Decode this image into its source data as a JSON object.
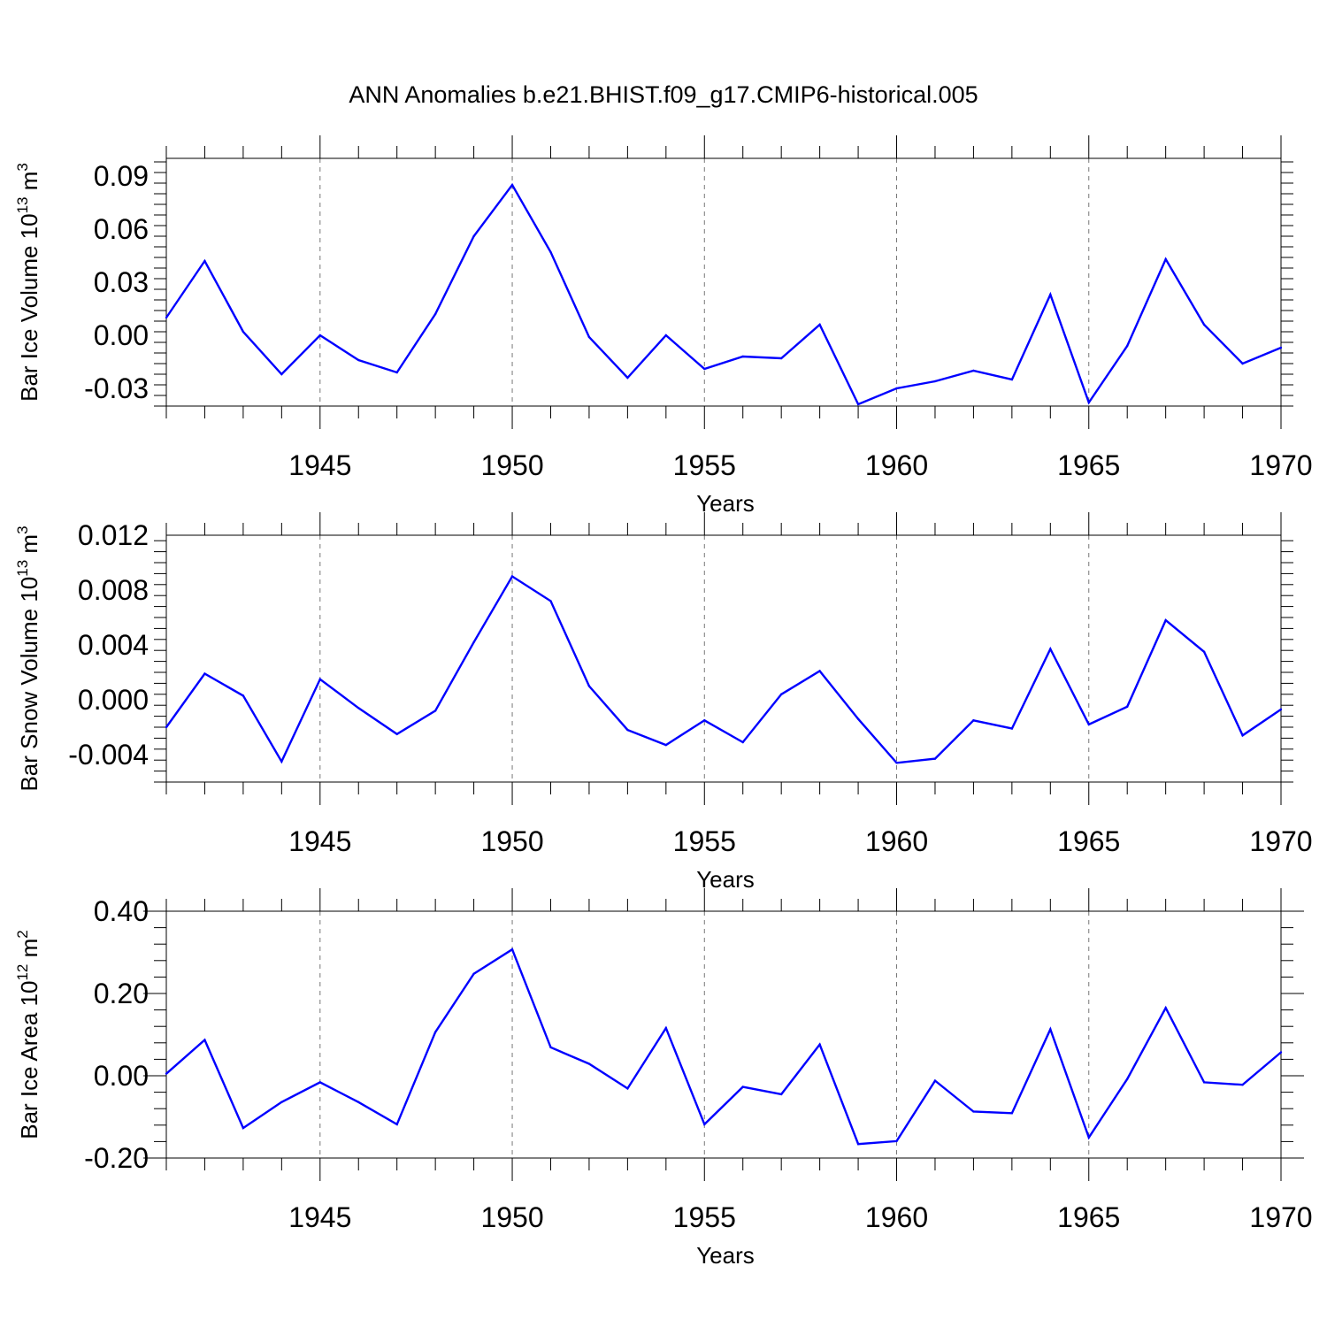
{
  "title": "ANN Anomalies b.e21.BHIST.f09_g17.CMIP6-historical.005",
  "colors": {
    "line": "#0000ff",
    "axes": "#000000",
    "grid": "#777777"
  },
  "chart_data": [
    {
      "type": "line",
      "ylabel_main": "Bar Ice Volume 10",
      "ylabel_sup": "13",
      "ylabel_unit": " m",
      "ylabel_unit_sup": "3",
      "xlabel": "Years",
      "xlim": [
        1941,
        1970
      ],
      "ylim": [
        -0.04,
        0.1
      ],
      "yticks": [
        -0.03,
        0.0,
        0.03,
        0.06,
        0.09
      ],
      "ytick_labels": [
        "-0.03",
        "0.00",
        "0.03",
        "0.06",
        "0.09"
      ],
      "xticks": [
        1945,
        1950,
        1955,
        1960,
        1965,
        1970
      ],
      "xtick_labels": [
        "1945",
        "1950",
        "1955",
        "1960",
        "1965",
        "1970"
      ],
      "grid_x": [
        1945,
        1950,
        1955,
        1960,
        1965
      ],
      "x": [
        1941,
        1942,
        1943,
        1944,
        1945,
        1946,
        1947,
        1948,
        1949,
        1950,
        1951,
        1952,
        1953,
        1954,
        1955,
        1956,
        1957,
        1958,
        1959,
        1960,
        1961,
        1962,
        1963,
        1964,
        1965,
        1966,
        1967,
        1968,
        1969,
        1970
      ],
      "values": [
        0.01,
        0.042,
        0.002,
        -0.022,
        0.0,
        -0.014,
        -0.021,
        0.012,
        0.056,
        0.085,
        0.047,
        -0.001,
        -0.024,
        0.0,
        -0.019,
        -0.012,
        -0.013,
        0.006,
        -0.039,
        -0.03,
        -0.026,
        -0.02,
        -0.025,
        0.023,
        -0.038,
        -0.006,
        0.043,
        0.006,
        -0.016,
        -0.007
      ]
    },
    {
      "type": "line",
      "ylabel_main": "Bar Snow Volume 10",
      "ylabel_sup": "13",
      "ylabel_unit": " m",
      "ylabel_unit_sup": "3",
      "xlabel": "Years",
      "xlim": [
        1941,
        1970
      ],
      "ylim": [
        -0.006,
        0.012
      ],
      "yticks": [
        -0.004,
        0.0,
        0.004,
        0.008,
        0.012
      ],
      "ytick_labels": [
        "-0.004",
        "0.000",
        "0.004",
        "0.008",
        "0.012"
      ],
      "xticks": [
        1945,
        1950,
        1955,
        1960,
        1965,
        1970
      ],
      "xtick_labels": [
        "1945",
        "1950",
        "1955",
        "1960",
        "1965",
        "1970"
      ],
      "grid_x": [
        1945,
        1950,
        1955,
        1960,
        1965
      ],
      "x": [
        1941,
        1942,
        1943,
        1944,
        1945,
        1946,
        1947,
        1948,
        1949,
        1950,
        1951,
        1952,
        1953,
        1954,
        1955,
        1956,
        1957,
        1958,
        1959,
        1960,
        1961,
        1962,
        1963,
        1964,
        1965,
        1966,
        1967,
        1968,
        1969,
        1970
      ],
      "values": [
        -0.002,
        0.0019,
        0.0003,
        -0.0045,
        0.0015,
        -0.0006,
        -0.0025,
        -0.0008,
        0.0042,
        0.009,
        0.0072,
        0.001,
        -0.0022,
        -0.0033,
        -0.0015,
        -0.0031,
        0.0004,
        0.0021,
        -0.0014,
        -0.0046,
        -0.0043,
        -0.0015,
        -0.0021,
        0.0037,
        -0.0018,
        -0.0005,
        0.0058,
        0.0035,
        -0.0026,
        -0.0007
      ]
    },
    {
      "type": "line",
      "ylabel_main": "Bar Ice Area 10",
      "ylabel_sup": "12",
      "ylabel_unit": " m",
      "ylabel_unit_sup": "2",
      "xlabel": "Years",
      "xlim": [
        1941,
        1970
      ],
      "ylim": [
        -0.2,
        0.4
      ],
      "yticks": [
        -0.2,
        0.0,
        0.2,
        0.4
      ],
      "ytick_labels": [
        "-0.20",
        "0.00",
        "0.20",
        "0.40"
      ],
      "xticks": [
        1945,
        1950,
        1955,
        1960,
        1965,
        1970
      ],
      "xtick_labels": [
        "1945",
        "1950",
        "1955",
        "1960",
        "1965",
        "1970"
      ],
      "grid_x": [
        1945,
        1950,
        1955,
        1960,
        1965
      ],
      "x": [
        1941,
        1942,
        1943,
        1944,
        1945,
        1946,
        1947,
        1948,
        1949,
        1950,
        1951,
        1952,
        1953,
        1954,
        1955,
        1956,
        1957,
        1958,
        1959,
        1960,
        1961,
        1962,
        1963,
        1964,
        1965,
        1966,
        1967,
        1968,
        1969,
        1970
      ],
      "values": [
        0.005,
        0.087,
        -0.127,
        -0.064,
        -0.016,
        -0.064,
        -0.118,
        0.106,
        0.248,
        0.307,
        0.069,
        0.029,
        -0.031,
        0.116,
        -0.118,
        -0.027,
        -0.045,
        0.076,
        -0.166,
        -0.159,
        -0.012,
        -0.087,
        -0.091,
        0.113,
        -0.15,
        -0.008,
        0.165,
        -0.016,
        -0.022,
        0.057
      ]
    }
  ]
}
